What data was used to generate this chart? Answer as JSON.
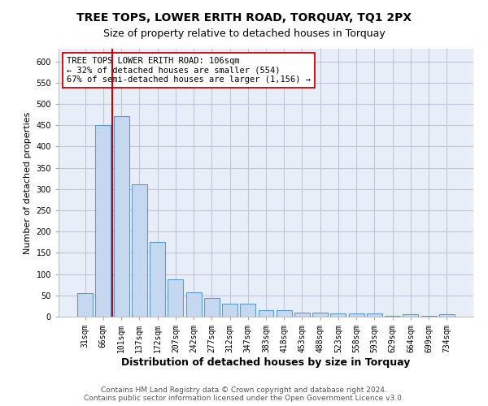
{
  "title": "TREE TOPS, LOWER ERITH ROAD, TORQUAY, TQ1 2PX",
  "subtitle": "Size of property relative to detached houses in Torquay",
  "xlabel": "Distribution of detached houses by size in Torquay",
  "ylabel": "Number of detached properties",
  "categories": [
    "31sqm",
    "66sqm",
    "101sqm",
    "137sqm",
    "172sqm",
    "207sqm",
    "242sqm",
    "277sqm",
    "312sqm",
    "347sqm",
    "383sqm",
    "418sqm",
    "453sqm",
    "488sqm",
    "523sqm",
    "558sqm",
    "593sqm",
    "629sqm",
    "664sqm",
    "699sqm",
    "734sqm"
  ],
  "values": [
    55,
    450,
    472,
    311,
    176,
    88,
    58,
    43,
    30,
    30,
    15,
    15,
    10,
    10,
    7,
    7,
    7,
    1,
    5,
    1,
    5
  ],
  "bar_color": "#c5d8f0",
  "bar_edge_color": "#5b9bd5",
  "vline_color": "#cc0000",
  "vline_pos": 1.5,
  "annotation_text": "TREE TOPS LOWER ERITH ROAD: 106sqm\n← 32% of detached houses are smaller (554)\n67% of semi-detached houses are larger (1,156) →",
  "annotation_box_color": "#ffffff",
  "annotation_box_edge_color": "#cc0000",
  "ylim": [
    0,
    630
  ],
  "yticks": [
    0,
    50,
    100,
    150,
    200,
    250,
    300,
    350,
    400,
    450,
    500,
    550,
    600
  ],
  "footer1": "Contains HM Land Registry data © Crown copyright and database right 2024.",
  "footer2": "Contains public sector information licensed under the Open Government Licence v3.0.",
  "bg_color": "#ffffff",
  "plot_bg_color": "#e8eef8",
  "grid_color": "#c0c8d8",
  "title_fontsize": 10,
  "subtitle_fontsize": 9,
  "xlabel_fontsize": 9,
  "ylabel_fontsize": 8,
  "tick_fontsize": 7,
  "annotation_fontsize": 7.5,
  "footer_fontsize": 6.5
}
